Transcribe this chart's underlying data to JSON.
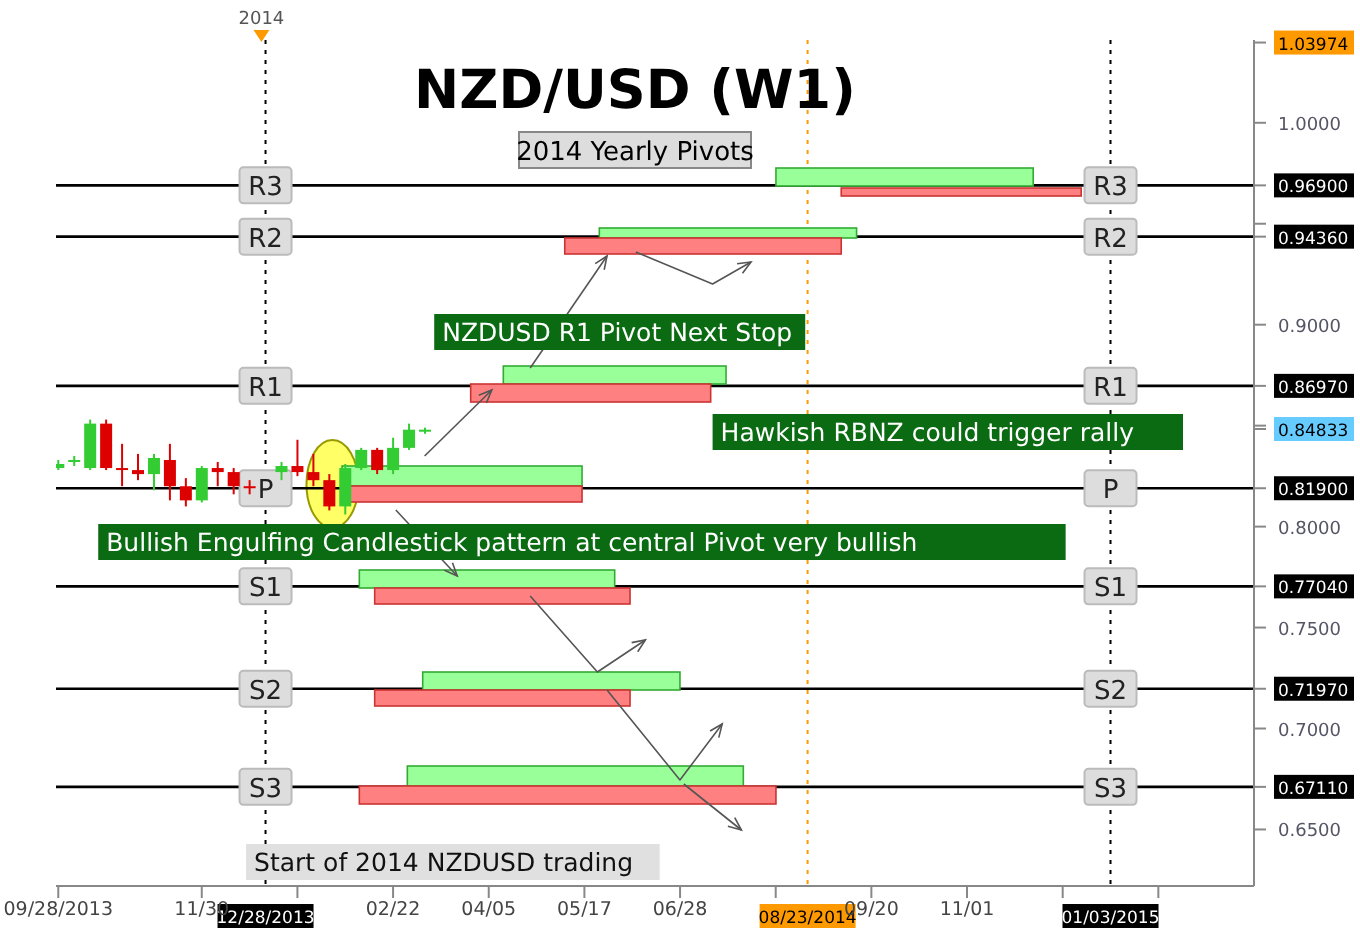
{
  "chart_data": {
    "type": "candlestick",
    "title": "NZD/USD (W1)",
    "subtitle": "2014 Yearly Pivots",
    "x": [
      "2013-09-28",
      "2013-10-05",
      "2013-10-12",
      "2013-10-19",
      "2013-10-26",
      "2013-11-02",
      "2013-11-09",
      "2013-11-16",
      "2013-11-23",
      "2013-11-30",
      "2013-12-07",
      "2013-12-14",
      "2013-12-21",
      "2014-01-04",
      "2014-01-11",
      "2014-01-18",
      "2014-01-25",
      "2014-02-01",
      "2014-02-08",
      "2014-02-15",
      "2014-02-22",
      "2014-03-01",
      "2014-03-08"
    ],
    "ohlc": [
      [
        0.829,
        0.833,
        0.828,
        0.831
      ],
      [
        0.832,
        0.835,
        0.83,
        0.833
      ],
      [
        0.829,
        0.853,
        0.828,
        0.851
      ],
      [
        0.851,
        0.853,
        0.828,
        0.829
      ],
      [
        0.829,
        0.841,
        0.82,
        0.828
      ],
      [
        0.828,
        0.836,
        0.823,
        0.826
      ],
      [
        0.826,
        0.836,
        0.818,
        0.834
      ],
      [
        0.833,
        0.841,
        0.813,
        0.82
      ],
      [
        0.82,
        0.824,
        0.81,
        0.813
      ],
      [
        0.813,
        0.83,
        0.812,
        0.829
      ],
      [
        0.829,
        0.832,
        0.82,
        0.827
      ],
      [
        0.827,
        0.829,
        0.816,
        0.82
      ],
      [
        0.82,
        0.823,
        0.816,
        0.819
      ],
      [
        0.827,
        0.832,
        0.823,
        0.83
      ],
      [
        0.83,
        0.843,
        0.825,
        0.827
      ],
      [
        0.827,
        0.836,
        0.82,
        0.823
      ],
      [
        0.823,
        0.826,
        0.808,
        0.81
      ],
      [
        0.81,
        0.831,
        0.806,
        0.829
      ],
      [
        0.829,
        0.839,
        0.828,
        0.838
      ],
      [
        0.838,
        0.839,
        0.826,
        0.828
      ],
      [
        0.828,
        0.844,
        0.826,
        0.839
      ],
      [
        0.839,
        0.851,
        0.838,
        0.848
      ],
      [
        0.847,
        0.849,
        0.846,
        0.848
      ]
    ],
    "colors": [
      "#33cc33",
      "#33cc33",
      "#33cc33",
      "#dd0000",
      "#dd0000",
      "#dd0000",
      "#33cc33",
      "#dd0000",
      "#dd0000",
      "#33cc33",
      "#dd0000",
      "#dd0000",
      "#dd0000",
      "#33cc33",
      "#dd0000",
      "#dd0000",
      "#dd0000",
      "#33cc33",
      "#33cc33",
      "#dd0000",
      "#33cc33",
      "#33cc33",
      "#33cc33"
    ],
    "xlim": [
      "2013-09-27",
      "2015-03-07"
    ],
    "xticks": [
      {
        "value": "2013-09-28",
        "label": "09/28/2013"
      },
      {
        "value": "2013-11-30",
        "label": "11/30"
      },
      {
        "value": "2014-01-11",
        "label": null
      },
      {
        "value": "2014-02-22",
        "label": "02/22"
      },
      {
        "value": "2014-04-05",
        "label": "04/05"
      },
      {
        "value": "2014-05-17",
        "label": "05/17"
      },
      {
        "value": "2014-06-28",
        "label": "06/28"
      },
      {
        "value": "2014-08-09",
        "label": null
      },
      {
        "value": "2014-09-20",
        "label": "09/20"
      },
      {
        "value": "2014-11-01",
        "label": "11/01"
      },
      {
        "value": "2014-12-13",
        "label": null
      },
      {
        "value": "2015-01-24",
        "label": null
      }
    ],
    "ylim": [
      0.622,
      1.041
    ],
    "yticks": [
      {
        "value": 0.65,
        "label": "0.6500"
      },
      {
        "value": 0.7,
        "label": "0.7000"
      },
      {
        "value": 0.75,
        "label": "0.7500"
      },
      {
        "value": 0.8,
        "label": "0.8000"
      },
      {
        "value": 0.85,
        "label": null
      },
      {
        "value": 0.9,
        "label": "0.9000"
      },
      {
        "value": 0.95,
        "label": null
      },
      {
        "value": 1.0,
        "label": "1.0000"
      },
      {
        "value": 0.6711,
        "label": "0.67110"
      },
      {
        "value": 0.7197,
        "label": "0.71970"
      },
      {
        "value": 0.7704,
        "label": "0.77040"
      },
      {
        "value": 0.819,
        "label": "0.81900"
      },
      {
        "value": 0.84833,
        "label": "0.84833"
      },
      {
        "value": 0.8697,
        "label": "0.86970"
      },
      {
        "value": 0.9436,
        "label": "0.94360"
      },
      {
        "value": 0.969,
        "label": "0.96900"
      },
      {
        "value": 1.03974,
        "label": "1.03974"
      }
    ],
    "ref_lines": [
      {
        "axis": "x",
        "value": "2013-12-28",
        "label": "12/28/2013",
        "color": "#000000",
        "line_style": "dotted"
      },
      {
        "axis": "x",
        "value": "2014-08-23",
        "label": "08/23/2014",
        "color": "#ff9900",
        "line_style": "dotted"
      },
      {
        "axis": "x",
        "value": "2015-01-03",
        "label": "01/03/2015",
        "color": "#000000",
        "line_style": "dotted"
      },
      {
        "axis": "y",
        "value": 0.969,
        "label": "R3",
        "color": "#000000",
        "line_style": "solid"
      },
      {
        "axis": "y",
        "value": 0.9436,
        "label": "R2",
        "color": "#000000",
        "line_style": "solid"
      },
      {
        "axis": "y",
        "value": 0.8697,
        "label": "R1",
        "color": "#000000",
        "line_style": "solid"
      },
      {
        "axis": "y",
        "value": 0.819,
        "label": "P",
        "color": "#000000",
        "line_style": "solid"
      },
      {
        "axis": "y",
        "value": 0.7704,
        "label": "S1",
        "color": "#000000",
        "line_style": "solid"
      },
      {
        "axis": "y",
        "value": 0.7197,
        "label": "S2",
        "color": "#000000",
        "line_style": "solid"
      },
      {
        "axis": "y",
        "value": 0.6711,
        "label": "S3",
        "color": "#000000",
        "line_style": "solid"
      }
    ],
    "annotations": [
      "NZDUSD R1 Pivot Next Stop",
      "Hawkish RBNZ could trigger rally",
      "Bullish Engulfing Candlestick pattern at central Pivot very bullish",
      "Start of 2014 NZDUSD trading",
      "2014"
    ]
  }
}
